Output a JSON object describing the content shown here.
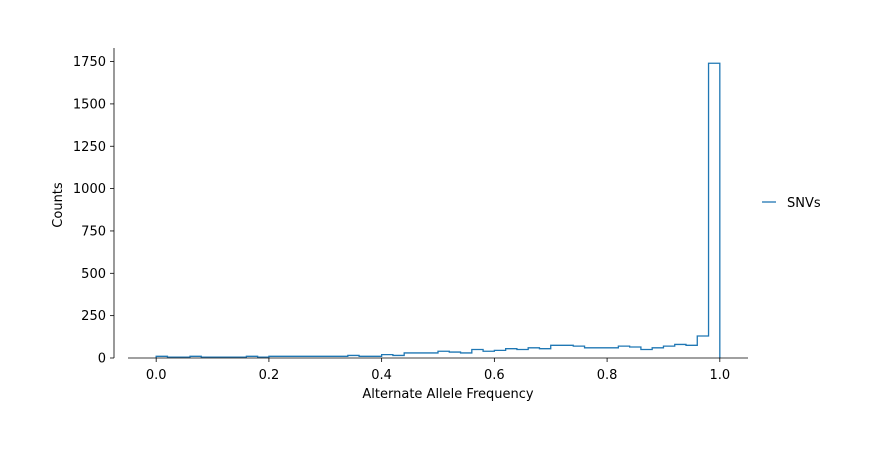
{
  "chart_data": {
    "type": "histogram",
    "xlabel": "Alternate Allele Frequency",
    "ylabel": "Counts",
    "xlim": [
      -0.05,
      1.05
    ],
    "ylim": [
      0,
      1830
    ],
    "x_ticks": [
      0.0,
      0.2,
      0.4,
      0.6,
      0.8,
      1.0
    ],
    "x_tick_labels": [
      "0.0",
      "0.2",
      "0.4",
      "0.6",
      "0.8",
      "1.0"
    ],
    "y_ticks": [
      0,
      250,
      500,
      750,
      1000,
      1250,
      1500,
      1750
    ],
    "y_tick_labels": [
      "0",
      "250",
      "500",
      "750",
      "1000",
      "1250",
      "1500",
      "1750"
    ],
    "grid": false,
    "legend_position": "right",
    "series": [
      {
        "name": "SNVs",
        "color": "#1f77b4",
        "bin_edges": [
          0.0,
          0.02,
          0.04,
          0.06,
          0.08,
          0.1,
          0.12,
          0.14,
          0.16,
          0.18,
          0.2,
          0.22,
          0.24,
          0.26,
          0.28,
          0.3,
          0.32,
          0.34,
          0.36,
          0.38,
          0.4,
          0.42,
          0.44,
          0.46,
          0.48,
          0.5,
          0.52,
          0.54,
          0.56,
          0.58,
          0.6,
          0.62,
          0.64,
          0.66,
          0.68,
          0.7,
          0.72,
          0.74,
          0.76,
          0.78,
          0.8,
          0.82,
          0.84,
          0.86,
          0.88,
          0.9,
          0.92,
          0.94,
          0.96,
          0.98,
          1.0
        ],
        "counts": [
          10,
          5,
          5,
          10,
          5,
          5,
          5,
          5,
          10,
          5,
          10,
          10,
          10,
          10,
          10,
          10,
          10,
          15,
          10,
          10,
          20,
          15,
          30,
          30,
          30,
          40,
          35,
          30,
          50,
          40,
          45,
          55,
          50,
          60,
          55,
          75,
          75,
          70,
          60,
          60,
          60,
          70,
          65,
          50,
          60,
          70,
          80,
          75,
          130,
          1740
        ]
      }
    ]
  }
}
